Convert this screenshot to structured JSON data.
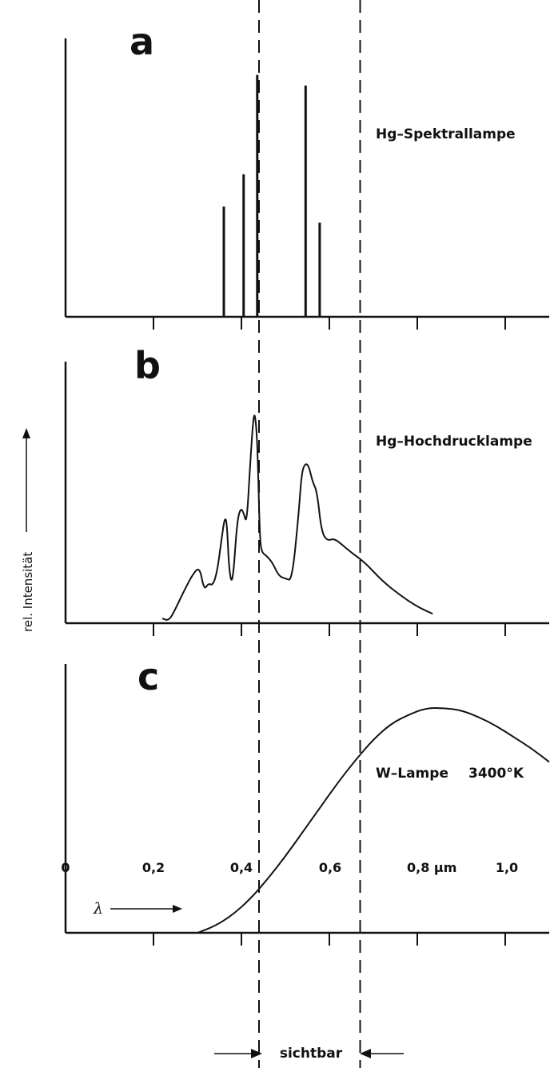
{
  "chart_data": [
    {
      "type": "bar",
      "panel": "a",
      "label": "Hg–Spektrallampe",
      "x_unit": "µm",
      "xlim": [
        0,
        1.1
      ],
      "ylim": [
        0,
        1.0
      ],
      "lines": [
        {
          "x": 0.36,
          "y": 0.41
        },
        {
          "x": 0.405,
          "y": 0.53
        },
        {
          "x": 0.436,
          "y": 0.9
        },
        {
          "x": 0.546,
          "y": 0.86
        },
        {
          "x": 0.578,
          "y": 0.35
        }
      ]
    },
    {
      "type": "line",
      "panel": "b",
      "label": "Hg–Hochdrucklampe",
      "x_unit": "µm",
      "xlim": [
        0,
        1.1
      ],
      "ylim": [
        0,
        1.0
      ],
      "x": [
        0.22,
        0.235,
        0.25,
        0.27,
        0.29,
        0.305,
        0.315,
        0.325,
        0.335,
        0.345,
        0.355,
        0.362,
        0.367,
        0.372,
        0.38,
        0.39,
        0.398,
        0.405,
        0.412,
        0.42,
        0.428,
        0.433,
        0.437,
        0.442,
        0.447,
        0.455,
        0.47,
        0.485,
        0.5,
        0.515,
        0.53,
        0.537,
        0.545,
        0.553,
        0.562,
        0.572,
        0.582,
        0.595,
        0.61,
        0.625,
        0.65,
        0.68,
        0.72,
        0.76,
        0.8,
        0.835
      ],
      "y": [
        0.02,
        0.01,
        0.06,
        0.14,
        0.21,
        0.24,
        0.14,
        0.17,
        0.16,
        0.22,
        0.36,
        0.45,
        0.43,
        0.22,
        0.16,
        0.43,
        0.49,
        0.47,
        0.42,
        0.68,
        0.9,
        0.86,
        0.72,
        0.35,
        0.3,
        0.29,
        0.26,
        0.2,
        0.19,
        0.18,
        0.46,
        0.64,
        0.68,
        0.67,
        0.6,
        0.56,
        0.39,
        0.35,
        0.36,
        0.34,
        0.3,
        0.26,
        0.18,
        0.12,
        0.07,
        0.04
      ]
    },
    {
      "type": "line",
      "panel": "c",
      "label": "W–Lampe",
      "temperature": "3400°K",
      "x_unit": "µm",
      "xlim": [
        0,
        1.1
      ],
      "ylim": [
        0,
        1.0
      ],
      "x": [
        0.3,
        0.34,
        0.38,
        0.42,
        0.46,
        0.5,
        0.54,
        0.58,
        0.62,
        0.66,
        0.7,
        0.74,
        0.78,
        0.82,
        0.86,
        0.9,
        0.94,
        0.98,
        1.02,
        1.06,
        1.1
      ],
      "y": [
        0.0,
        0.03,
        0.08,
        0.15,
        0.24,
        0.34,
        0.45,
        0.56,
        0.67,
        0.77,
        0.86,
        0.93,
        0.97,
        1.0,
        1.0,
        0.99,
        0.96,
        0.92,
        0.87,
        0.82,
        0.76
      ]
    }
  ],
  "figure": {
    "panel_letters": [
      "a",
      "b",
      "c"
    ],
    "ylabel": "rel. Intensität",
    "xsymbol": "λ",
    "x_ticks": [
      "0",
      "0,2",
      "0,4",
      "0,6",
      "0,8  µm",
      "1,0"
    ],
    "visible_range": {
      "label": "sichtbar",
      "x": [
        0.44,
        0.67
      ]
    },
    "colors": {
      "ink": "#111111",
      "background": "#ffffff"
    }
  }
}
